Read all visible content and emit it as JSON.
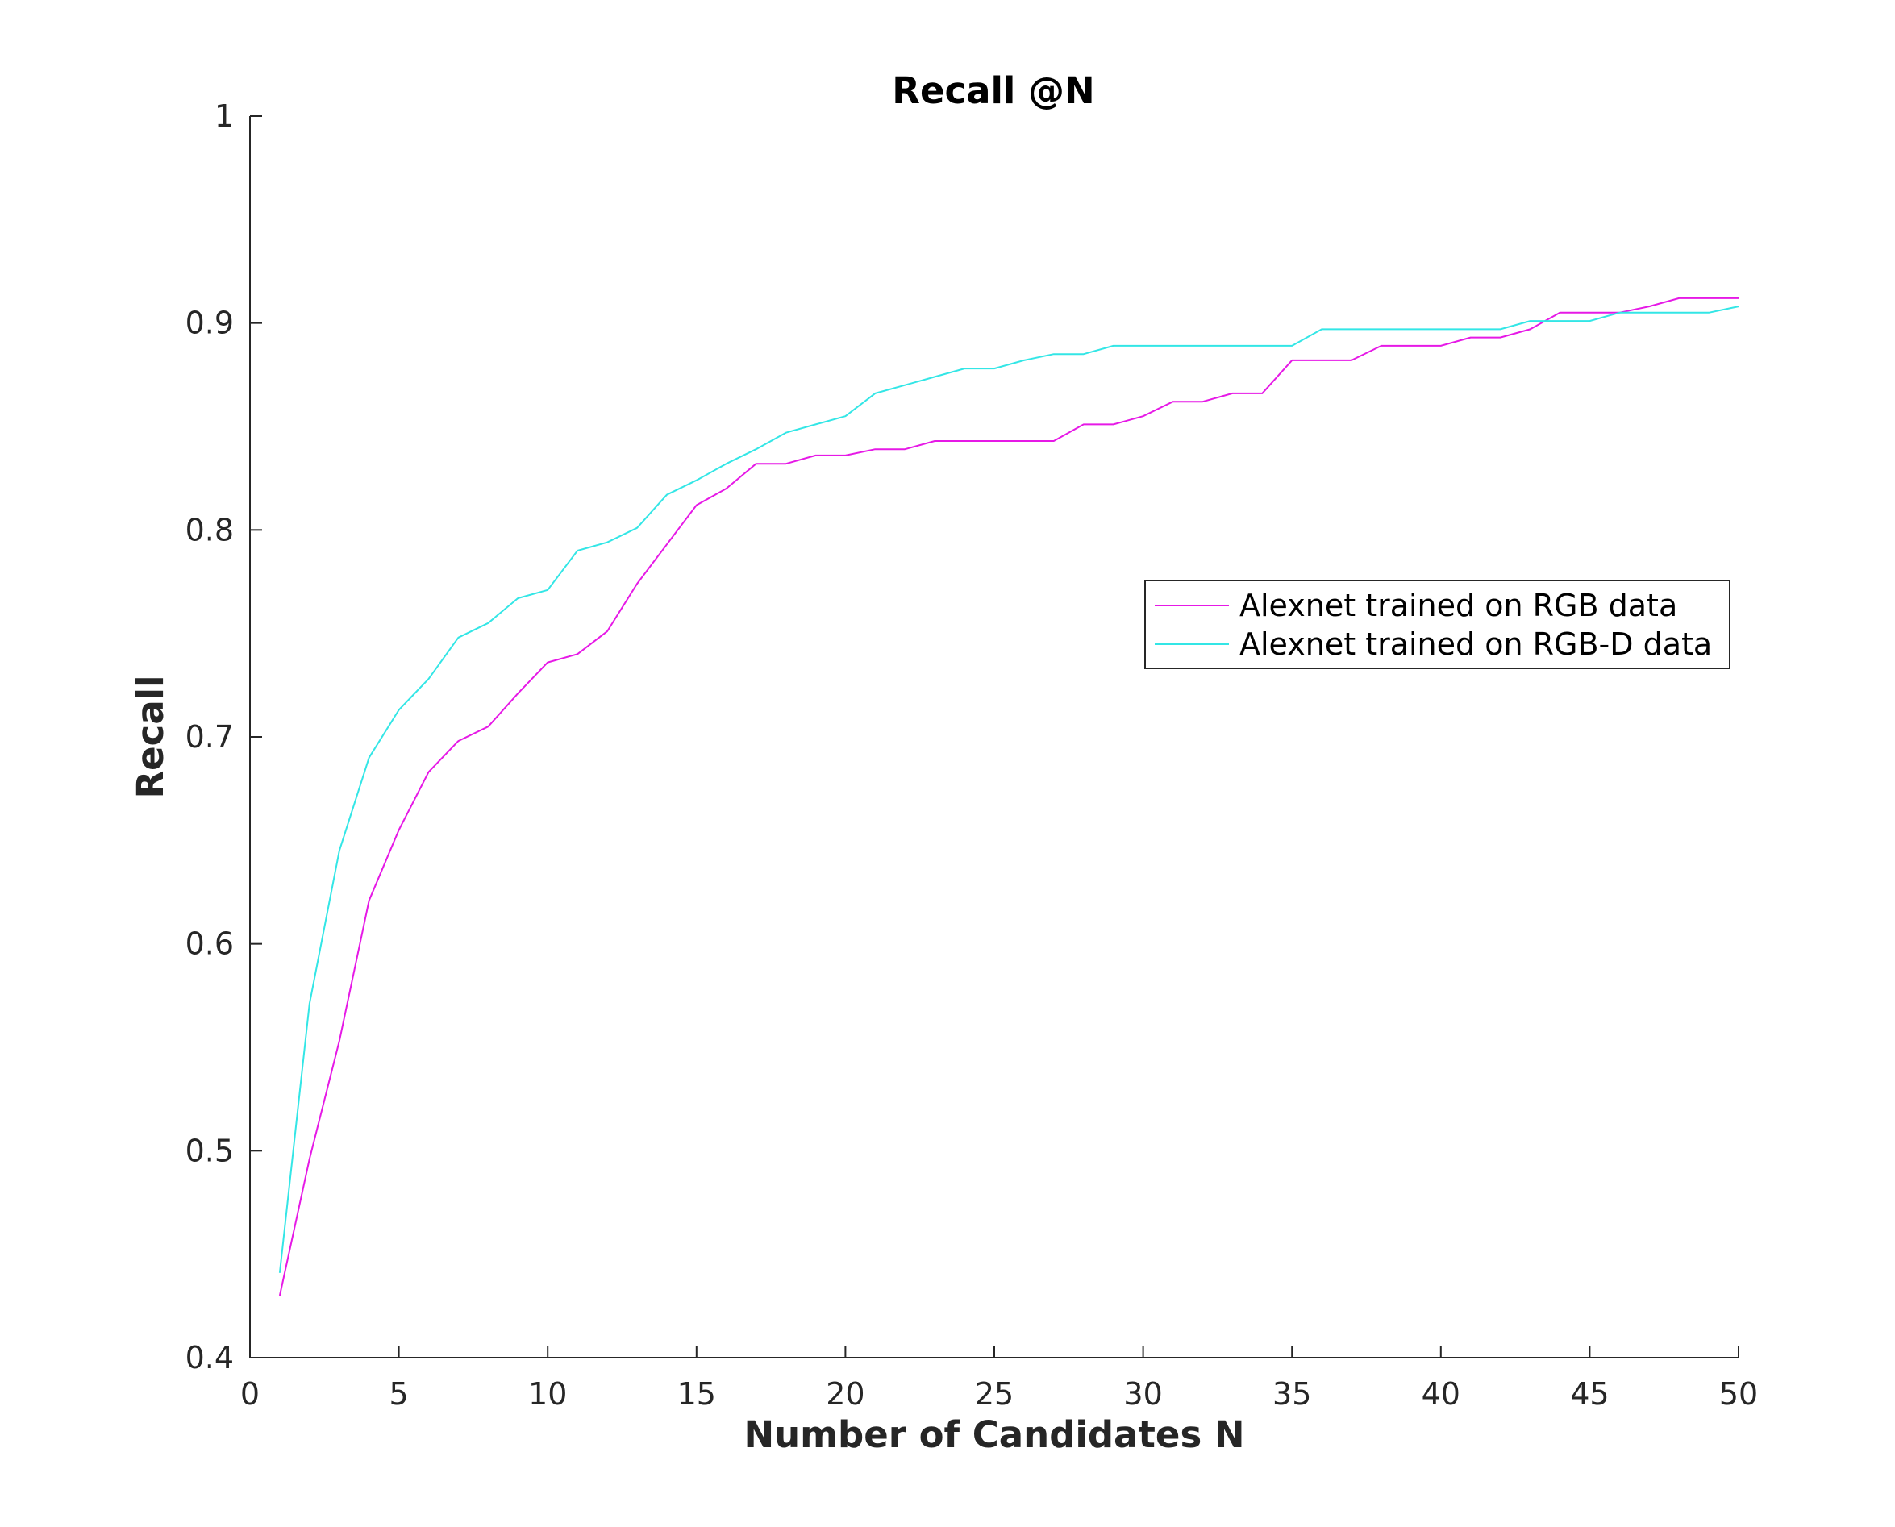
{
  "chart_data": {
    "type": "line",
    "title": "Recall @N",
    "xlabel": "Number of Candidates N",
    "ylabel": "Recall",
    "xlim": [
      0,
      50
    ],
    "ylim": [
      0.4,
      1
    ],
    "x_ticks": [
      "0",
      "5",
      "10",
      "15",
      "20",
      "25",
      "30",
      "35",
      "40",
      "45",
      "50"
    ],
    "y_ticks": [
      "0.4",
      "0.5",
      "0.6",
      "0.7",
      "0.8",
      "0.9",
      "1"
    ],
    "grid": false,
    "legend_position": "right",
    "x": [
      1,
      2,
      3,
      4,
      5,
      6,
      7,
      8,
      9,
      10,
      11,
      12,
      13,
      14,
      15,
      16,
      17,
      18,
      19,
      20,
      21,
      22,
      23,
      24,
      25,
      26,
      27,
      28,
      29,
      30,
      31,
      32,
      33,
      34,
      35,
      36,
      37,
      38,
      39,
      40,
      41,
      42,
      43,
      44,
      45,
      46,
      47,
      48,
      49,
      50
    ],
    "series": [
      {
        "name": "Alexnet trained on RGB data",
        "color": "#e619e6",
        "values": [
          0.43,
          0.496,
          0.553,
          0.621,
          0.655,
          0.683,
          0.698,
          0.705,
          0.721,
          0.736,
          0.74,
          0.751,
          0.774,
          0.793,
          0.812,
          0.82,
          0.832,
          0.832,
          0.836,
          0.836,
          0.839,
          0.839,
          0.843,
          0.843,
          0.843,
          0.843,
          0.843,
          0.851,
          0.851,
          0.855,
          0.862,
          0.862,
          0.866,
          0.866,
          0.882,
          0.882,
          0.882,
          0.889,
          0.889,
          0.889,
          0.893,
          0.893,
          0.897,
          0.905,
          0.905,
          0.905,
          0.908,
          0.912,
          0.912,
          0.912
        ]
      },
      {
        "name": "Alexnet trained on RGB-D data",
        "color": "#33e6e6",
        "values": [
          0.441,
          0.571,
          0.645,
          0.69,
          0.713,
          0.728,
          0.748,
          0.755,
          0.767,
          0.771,
          0.79,
          0.794,
          0.801,
          0.817,
          0.824,
          0.832,
          0.839,
          0.847,
          0.851,
          0.855,
          0.866,
          0.87,
          0.874,
          0.878,
          0.878,
          0.882,
          0.885,
          0.885,
          0.889,
          0.889,
          0.889,
          0.889,
          0.889,
          0.889,
          0.889,
          0.897,
          0.897,
          0.897,
          0.897,
          0.897,
          0.897,
          0.897,
          0.901,
          0.901,
          0.901,
          0.905,
          0.905,
          0.905,
          0.905,
          0.908
        ]
      }
    ]
  }
}
